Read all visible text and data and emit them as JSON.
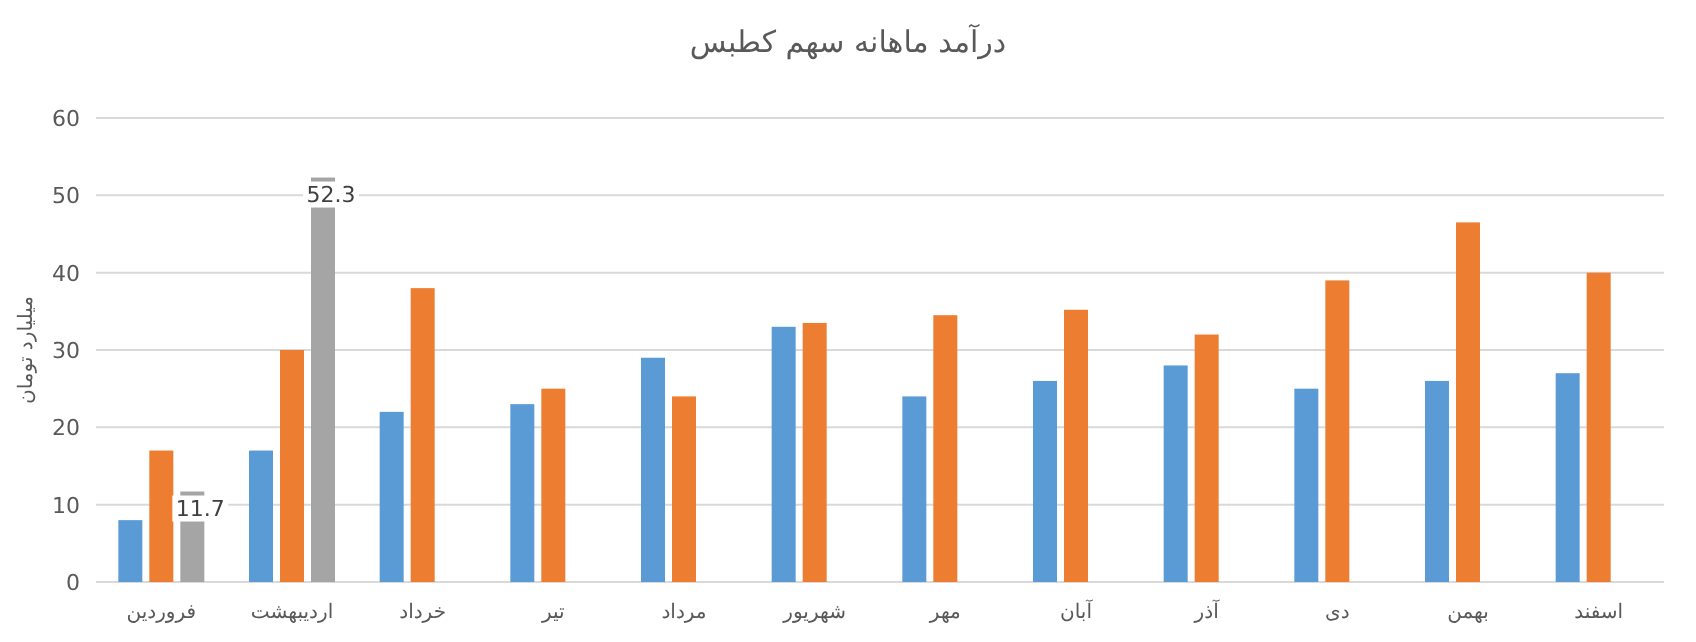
{
  "chart_data": {
    "type": "bar",
    "title": "درآمد ماهانه سهم کطبس",
    "ylabel": "میلیارد تومان",
    "categories": [
      "فروردین",
      "اردیبهشت",
      "خرداد",
      "تیر",
      "مرداد",
      "شهریور",
      "مهر",
      "آبان",
      "آذر",
      "دی",
      "بهمن",
      "اسفند"
    ],
    "series": [
      {
        "color": "#5b9bd5",
        "values": [
          8,
          17,
          22,
          23,
          29,
          33,
          24,
          26,
          28,
          25,
          26,
          27
        ]
      },
      {
        "color": "#ed7d31",
        "values": [
          17,
          30,
          38,
          25,
          24,
          33.5,
          34.5,
          35.2,
          32,
          39,
          46.5,
          40
        ]
      },
      {
        "color": "#a5a5a5",
        "values": [
          11.7,
          52.3,
          null,
          null,
          null,
          null,
          null,
          null,
          null,
          null,
          null,
          null
        ],
        "value_labels": [
          "11.7",
          "52.3",
          null,
          null,
          null,
          null,
          null,
          null,
          null,
          null,
          null,
          null
        ]
      }
    ],
    "ylim": [
      0,
      60
    ],
    "yticks": [
      0,
      10,
      20,
      30,
      40,
      50,
      60
    ],
    "grid": "y"
  }
}
